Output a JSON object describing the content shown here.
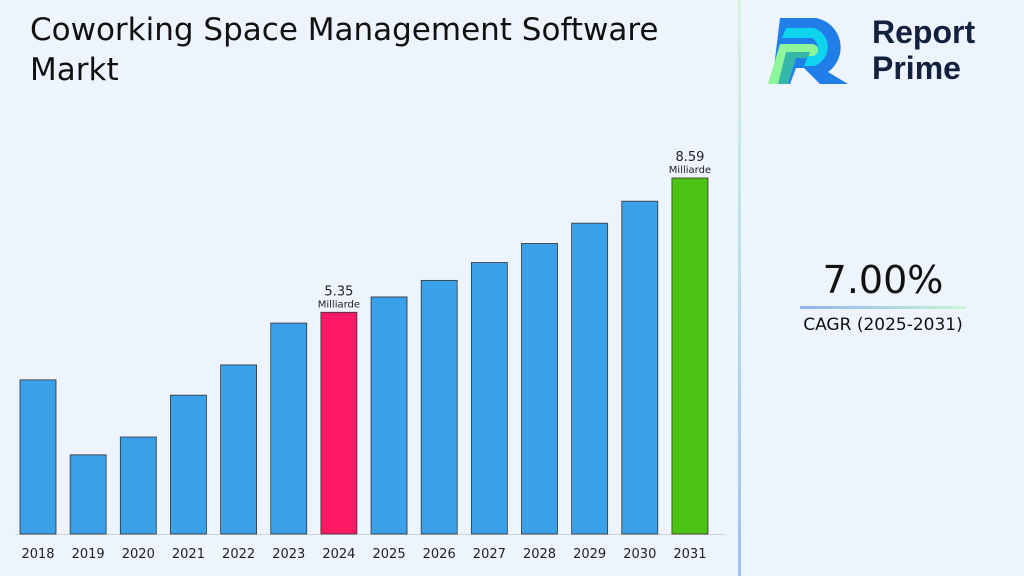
{
  "title": "Coworking Space Management Software Markt",
  "logo": {
    "line1": "Report",
    "line2": "Prime"
  },
  "cagr": {
    "value": "7.00%",
    "label": "CAGR (2025-2031)"
  },
  "colors": {
    "default": "#3aa0e8",
    "highlight_2024": "#fc1a64",
    "highlight_2031": "#4cc214"
  },
  "chart_data": {
    "type": "bar",
    "categories": [
      "2018",
      "2019",
      "2020",
      "2021",
      "2022",
      "2023",
      "2024",
      "2025",
      "2026",
      "2027",
      "2028",
      "2029",
      "2030",
      "2031"
    ],
    "values": [
      3.72,
      1.91,
      2.34,
      3.35,
      4.08,
      5.09,
      5.35,
      5.72,
      6.12,
      6.55,
      7.01,
      7.5,
      8.03,
      8.59
    ],
    "data_labels": [
      {
        "index": 6,
        "value": "5.35",
        "unit": "Milliarde"
      },
      {
        "index": 13,
        "value": "8.59",
        "unit": "Milliarde"
      }
    ],
    "ylim": [
      0,
      8.59
    ],
    "grid": false
  }
}
